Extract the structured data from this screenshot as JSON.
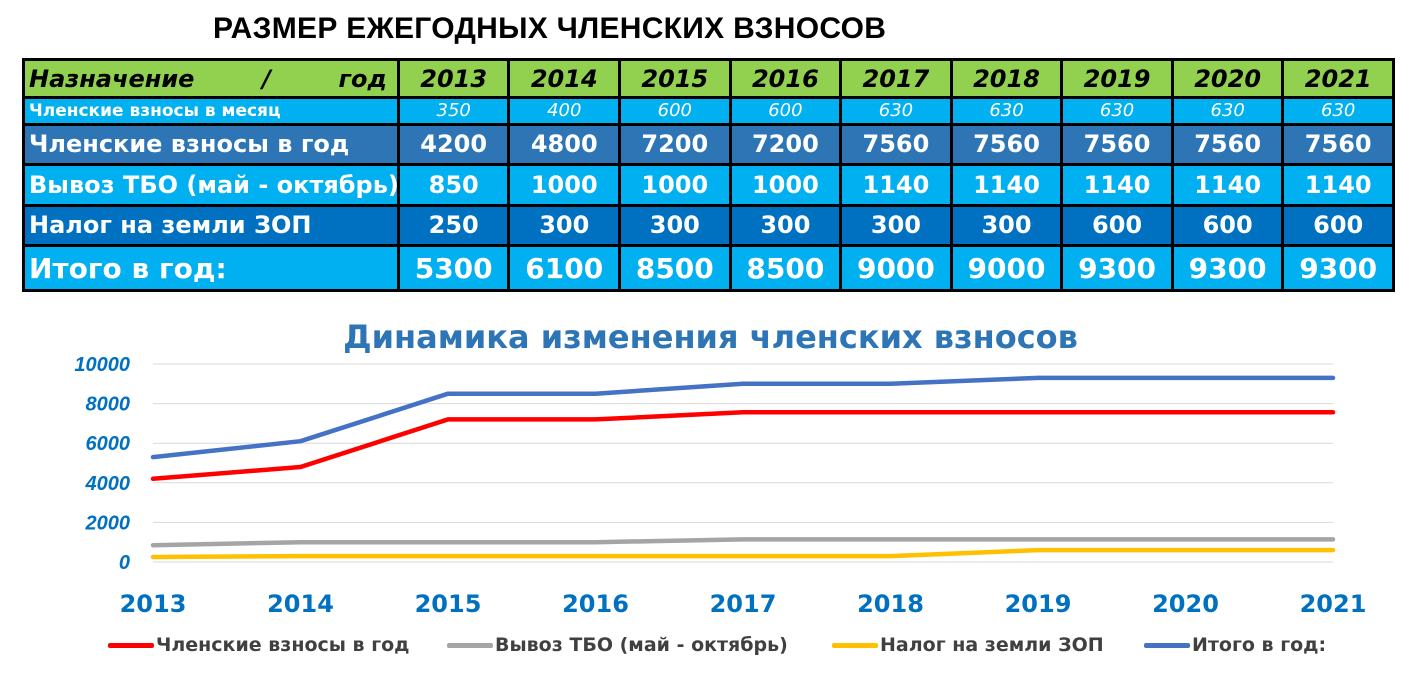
{
  "title": "РАЗМЕР ЕЖЕГОДНЫХ ЧЛЕНСКИХ ВЗНОСОВ",
  "table": {
    "header": {
      "label_left": "Назначение",
      "label_sep": "/",
      "label_right": "год",
      "years": [
        "2013",
        "2014",
        "2015",
        "2016",
        "2017",
        "2018",
        "2019",
        "2020",
        "2021"
      ]
    },
    "rows": [
      {
        "label": "Членские взносы в месяц",
        "values": [
          "350",
          "400",
          "600",
          "600",
          "630",
          "630",
          "630",
          "630",
          "630"
        ]
      },
      {
        "label": "Членские взносы в год",
        "values": [
          "4200",
          "4800",
          "7200",
          "7200",
          "7560",
          "7560",
          "7560",
          "7560",
          "7560"
        ]
      },
      {
        "label": "Вывоз ТБО (май - октябрь)",
        "values": [
          "850",
          "1000",
          "1000",
          "1000",
          "1140",
          "1140",
          "1140",
          "1140",
          "1140"
        ]
      },
      {
        "label": "Налог на земли ЗОП",
        "values": [
          "250",
          "300",
          "300",
          "300",
          "300",
          "300",
          "600",
          "600",
          "600"
        ]
      },
      {
        "label": "Итого в год:",
        "values": [
          "5300",
          "6100",
          "8500",
          "8500",
          "9000",
          "9000",
          "9300",
          "9300",
          "9300"
        ]
      }
    ]
  },
  "chart_data": {
    "type": "line",
    "title": "Динамика изменения членских взносов",
    "xlabel": "",
    "ylabel": "",
    "x": [
      "2013",
      "2014",
      "2015",
      "2016",
      "2017",
      "2018",
      "2019",
      "2020",
      "2021"
    ],
    "yticks": [
      "0",
      "2000",
      "4000",
      "6000",
      "8000",
      "10000"
    ],
    "ylim": [
      0,
      10000
    ],
    "grid": true,
    "legend_position": "bottom",
    "series": [
      {
        "name": "Членские взносы в год",
        "color": "#ff0000",
        "values": [
          4200,
          4800,
          7200,
          7200,
          7560,
          7560,
          7560,
          7560,
          7560
        ]
      },
      {
        "name": "Вывоз ТБО (май - октябрь)",
        "color": "#a5a5a5",
        "values": [
          850,
          1000,
          1000,
          1000,
          1140,
          1140,
          1140,
          1140,
          1140
        ]
      },
      {
        "name": "Налог на земли ЗОП",
        "color": "#ffc000",
        "values": [
          250,
          300,
          300,
          300,
          300,
          300,
          600,
          600,
          600
        ]
      },
      {
        "name": "Итого в год:",
        "color": "#4472c4",
        "values": [
          5300,
          6100,
          8500,
          8500,
          9000,
          9000,
          9300,
          9300,
          9300
        ]
      }
    ]
  }
}
